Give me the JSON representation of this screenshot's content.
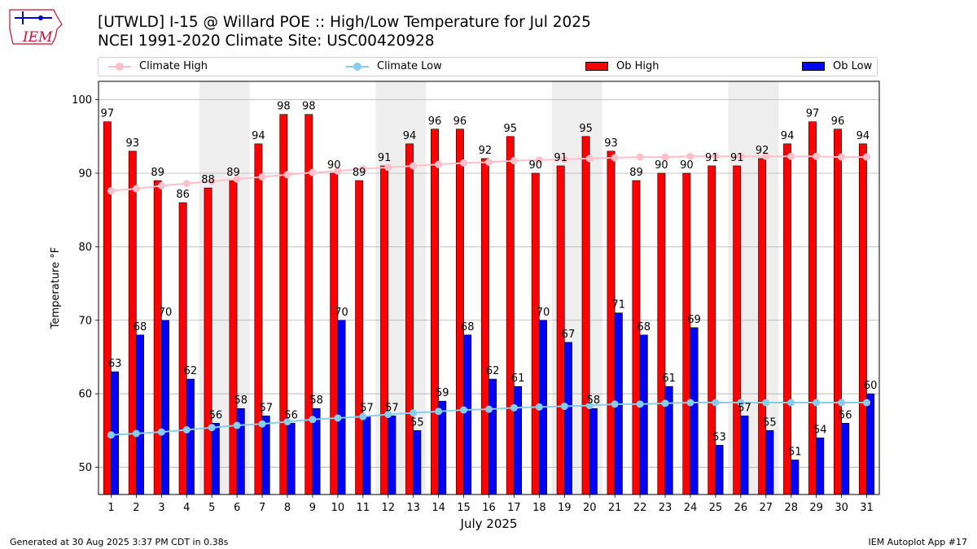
{
  "header": {
    "title_line1": "[UTWLD] I-15 @ Willard POE  :: High/Low Temperature for Jul 2025",
    "title_line2": "NCEI 1991-2020 Climate Site: USC00420928",
    "logo_text": "IEM"
  },
  "footer": {
    "left": "Generated at 30 Aug 2025 3:37 PM CDT in 0.38s",
    "right": "IEM Autoplot App #17"
  },
  "colors": {
    "ob_high": "#ff0000",
    "ob_low": "#0000ff",
    "climate_high": "#ffc0cb",
    "climate_low": "#87ceeb",
    "weekend_shade": "#eeeeee",
    "grid": "#b0b0b0"
  },
  "legend": {
    "climate_high": "Climate High",
    "climate_low": "Climate Low",
    "ob_high": "Ob High",
    "ob_low": "Ob Low"
  },
  "chart_data": {
    "type": "bar",
    "title": "[UTWLD] I-15 @ Willard POE  :: High/Low Temperature for Jul 2025",
    "xlabel": "July 2025",
    "ylabel": "Temperature °F",
    "ylim": [
      46.3,
      102.5
    ],
    "yticks": [
      50,
      60,
      70,
      80,
      90,
      100
    ],
    "grid": true,
    "legend_position": "top",
    "categories": [
      "1",
      "2",
      "3",
      "4",
      "5",
      "6",
      "7",
      "8",
      "9",
      "10",
      "11",
      "12",
      "13",
      "14",
      "15",
      "16",
      "17",
      "18",
      "19",
      "20",
      "21",
      "22",
      "23",
      "24",
      "25",
      "26",
      "27",
      "28",
      "29",
      "30",
      "31"
    ],
    "shaded_days": [
      [
        5,
        6
      ],
      [
        12,
        13
      ],
      [
        19,
        20
      ],
      [
        26,
        27
      ]
    ],
    "series": [
      {
        "name": "Ob High",
        "kind": "bar",
        "values": [
          97,
          93,
          89,
          86,
          88,
          89,
          94,
          98,
          98,
          90,
          89,
          91,
          94,
          96,
          96,
          92,
          95,
          90,
          91,
          95,
          93,
          89,
          90,
          90,
          91,
          91,
          92,
          94,
          97,
          96,
          94
        ]
      },
      {
        "name": "Ob Low",
        "kind": "bar",
        "values": [
          63,
          68,
          70,
          62,
          56,
          58,
          57,
          56,
          58,
          70,
          57,
          57,
          55,
          59,
          68,
          62,
          61,
          70,
          67,
          58,
          71,
          68,
          61,
          69,
          53,
          57,
          55,
          51,
          54,
          56,
          60
        ]
      },
      {
        "name": "Climate High",
        "kind": "line",
        "values": [
          87.6,
          87.9,
          88.3,
          88.6,
          88.9,
          89.2,
          89.5,
          89.8,
          90.1,
          90.3,
          90.6,
          90.8,
          91.0,
          91.2,
          91.4,
          91.5,
          91.7,
          91.8,
          91.9,
          92.0,
          92.1,
          92.2,
          92.2,
          92.3,
          92.3,
          92.3,
          92.3,
          92.3,
          92.3,
          92.2,
          92.2
        ]
      },
      {
        "name": "Climate Low",
        "kind": "line",
        "values": [
          54.4,
          54.6,
          54.8,
          55.1,
          55.4,
          55.7,
          55.9,
          56.2,
          56.5,
          56.7,
          56.9,
          57.2,
          57.4,
          57.6,
          57.8,
          57.9,
          58.1,
          58.2,
          58.3,
          58.4,
          58.6,
          58.6,
          58.7,
          58.8,
          58.8,
          58.8,
          58.8,
          58.8,
          58.8,
          58.8,
          58.8
        ]
      }
    ]
  }
}
